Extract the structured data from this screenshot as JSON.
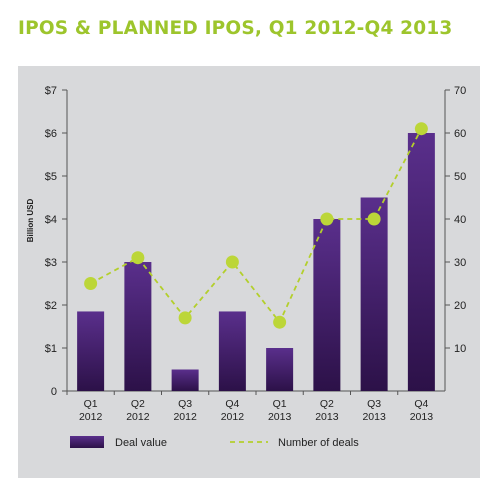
{
  "colors": {
    "title": "#9dc52c",
    "panel": "#d8d9db",
    "bar_top": "#5a2f8c",
    "bar_bottom": "#2c1148",
    "line": "#b3cf2c",
    "marker": "#bcd638",
    "axis": "#555555"
  },
  "chart_data": {
    "type": "bar",
    "title": "IPOS & PLANNED IPOS, Q1 2012-Q4 2013",
    "categories": [
      [
        "Q1",
        "2012"
      ],
      [
        "Q2",
        "2012"
      ],
      [
        "Q3",
        "2012"
      ],
      [
        "Q4",
        "2012"
      ],
      [
        "Q1",
        "2013"
      ],
      [
        "Q2",
        "2013"
      ],
      [
        "Q3",
        "2013"
      ],
      [
        "Q4",
        "2013"
      ]
    ],
    "ylabel": "Billion USD",
    "ylim": [
      0,
      7
    ],
    "y_ticks": [
      "0",
      "$1",
      "$2",
      "$3",
      "$4",
      "$5",
      "$6",
      "$7"
    ],
    "y2lim": [
      0,
      70
    ],
    "y2_ticks": [
      "10",
      "20",
      "30",
      "40",
      "50",
      "60",
      "70"
    ],
    "series": [
      {
        "name": "Deal value",
        "kind": "bar",
        "axis": "left",
        "values": [
          1.85,
          3.0,
          0.5,
          1.85,
          1.0,
          4.0,
          4.5,
          6.0
        ]
      },
      {
        "name": "Number of deals",
        "kind": "dashed-line",
        "axis": "right",
        "values": [
          25,
          31,
          17,
          30,
          16,
          40,
          40,
          61
        ]
      }
    ],
    "legend": "bottom",
    "grid": false
  }
}
